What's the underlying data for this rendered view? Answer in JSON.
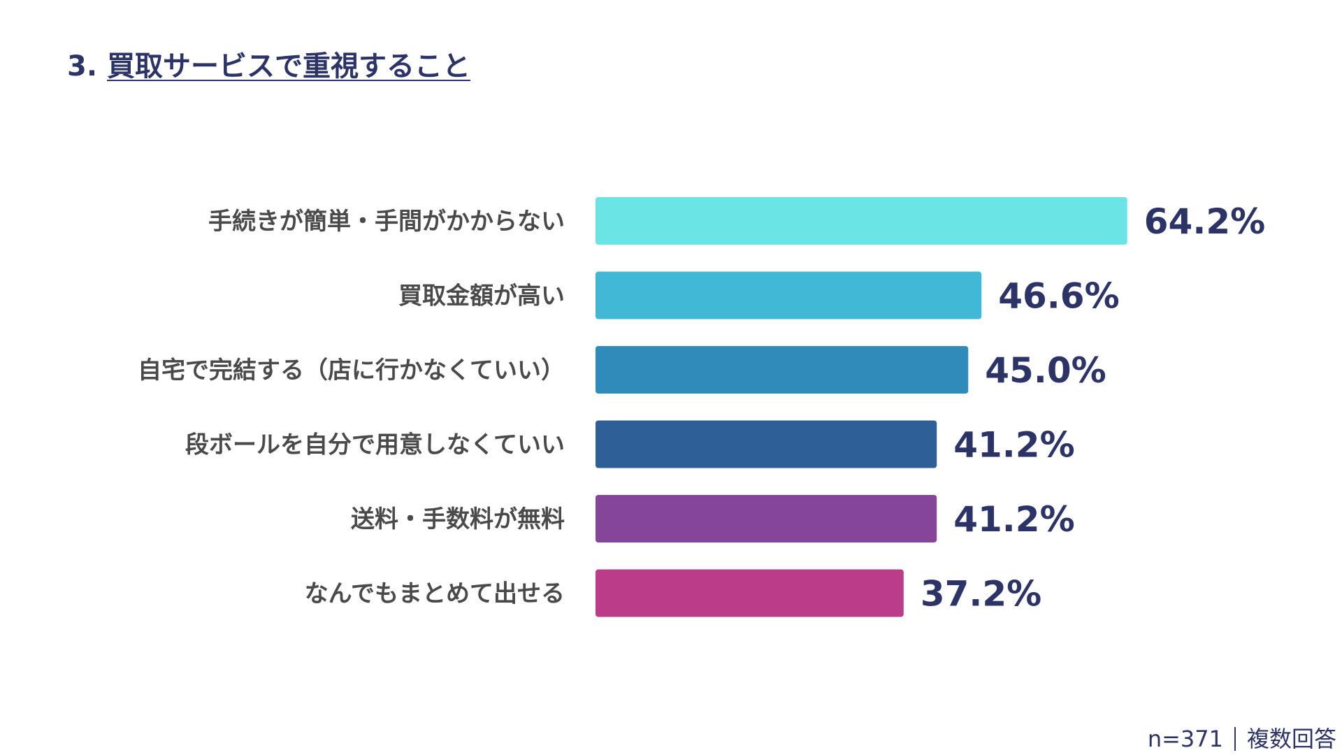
{
  "header": {
    "number": "3.",
    "title": "買取サービスで重視すること"
  },
  "footnote": {
    "sample": "n=371",
    "answer_type": "複数回答"
  },
  "colors": {
    "text_dark": "#2c3366",
    "label_gray": "#4a4a4a"
  },
  "chart_data": {
    "type": "bar",
    "orientation": "horizontal",
    "title": "買取サービスで重視すること",
    "categories": [
      "手続きが簡単・手間がかからない",
      "買取金額が高い",
      "自宅で完結する（店に行かなくていい）",
      "段ボールを自分で用意しなくていい",
      "送料・手数料が無料",
      "なんでもまとめて出せる"
    ],
    "values": [
      64.2,
      46.6,
      45.0,
      41.2,
      41.2,
      37.2
    ],
    "value_labels": [
      "64.2%",
      "46.6%",
      "45.0%",
      "41.2%",
      "41.2%",
      "37.2%"
    ],
    "bar_colors": [
      "#6be4e6",
      "#41b8d6",
      "#2e8bba",
      "#2e5f96",
      "#854599",
      "#bb3d8a"
    ],
    "unit": "%",
    "xlim": [
      0,
      100
    ],
    "grid": false,
    "legend": "none"
  }
}
